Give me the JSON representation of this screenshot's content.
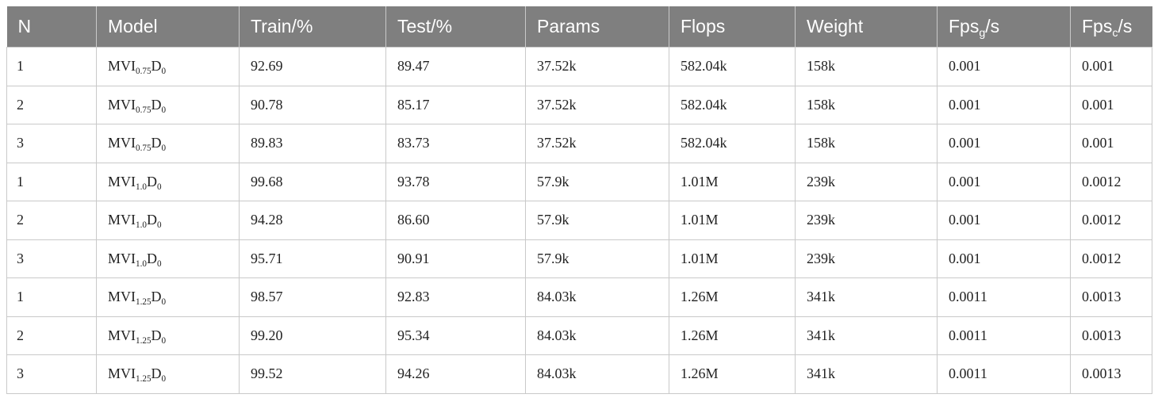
{
  "header": {
    "n": "N",
    "model": "Model",
    "train": "Train/%",
    "test": "Test/%",
    "params": "Params",
    "flops": "Flops",
    "weight": "Weight",
    "fpsg_base": "Fps",
    "fpsg_sub": "g",
    "fpsg_unit": "/s",
    "fpsc_base": "Fps",
    "fpsc_sub": "c",
    "fpsc_unit": "/s"
  },
  "rows": [
    {
      "n": "1",
      "m_base": "MVI",
      "m_sub": "0.75",
      "m_d": "D",
      "m_dsub": "0",
      "train": "92.69",
      "test": "89.47",
      "params": "37.52k",
      "flops": "582.04k",
      "weight": "158k",
      "fpsg": "0.001",
      "fpsc": "0.001"
    },
    {
      "n": "2",
      "m_base": "MVI",
      "m_sub": "0.75",
      "m_d": "D",
      "m_dsub": "0",
      "train": "90.78",
      "test": "85.17",
      "params": "37.52k",
      "flops": "582.04k",
      "weight": "158k",
      "fpsg": "0.001",
      "fpsc": "0.001"
    },
    {
      "n": "3",
      "m_base": "MVI",
      "m_sub": "0.75",
      "m_d": "D",
      "m_dsub": "0",
      "train": "89.83",
      "test": "83.73",
      "params": "37.52k",
      "flops": "582.04k",
      "weight": "158k",
      "fpsg": "0.001",
      "fpsc": "0.001"
    },
    {
      "n": "1",
      "m_base": "MVI",
      "m_sub": "1.0",
      "m_d": "D",
      "m_dsub": "0",
      "train": "99.68",
      "test": "93.78",
      "params": "57.9k",
      "flops": "1.01M",
      "weight": "239k",
      "fpsg": "0.001",
      "fpsc": "0.0012"
    },
    {
      "n": "2",
      "m_base": "MVI",
      "m_sub": "1.0",
      "m_d": "D",
      "m_dsub": "0",
      "train": "94.28",
      "test": "86.60",
      "params": "57.9k",
      "flops": "1.01M",
      "weight": "239k",
      "fpsg": "0.001",
      "fpsc": "0.0012"
    },
    {
      "n": "3",
      "m_base": "MVI",
      "m_sub": "1.0",
      "m_d": "D",
      "m_dsub": "0",
      "train": "95.71",
      "test": "90.91",
      "params": "57.9k",
      "flops": "1.01M",
      "weight": "239k",
      "fpsg": "0.001",
      "fpsc": "0.0012"
    },
    {
      "n": "1",
      "m_base": "MVI",
      "m_sub": "1.25",
      "m_d": "D",
      "m_dsub": "0",
      "train": "98.57",
      "test": "92.83",
      "params": "84.03k",
      "flops": "1.26M",
      "weight": "341k",
      "fpsg": "0.0011",
      "fpsc": "0.0013"
    },
    {
      "n": "2",
      "m_base": "MVI",
      "m_sub": "1.25",
      "m_d": "D",
      "m_dsub": "0",
      "train": "99.20",
      "test": "95.34",
      "params": "84.03k",
      "flops": "1.26M",
      "weight": "341k",
      "fpsg": "0.0011",
      "fpsc": "0.0013"
    },
    {
      "n": "3",
      "m_base": "MVI",
      "m_sub": "1.25",
      "m_d": "D",
      "m_dsub": "0",
      "train": "99.52",
      "test": "94.26",
      "params": "84.03k",
      "flops": "1.26M",
      "weight": "341k",
      "fpsg": "0.0011",
      "fpsc": "0.0013"
    }
  ],
  "colors": {
    "header_bg": "#7f7f7f",
    "header_text": "#ffffff",
    "border": "#c9c9c9",
    "cell_text": "#222222"
  }
}
